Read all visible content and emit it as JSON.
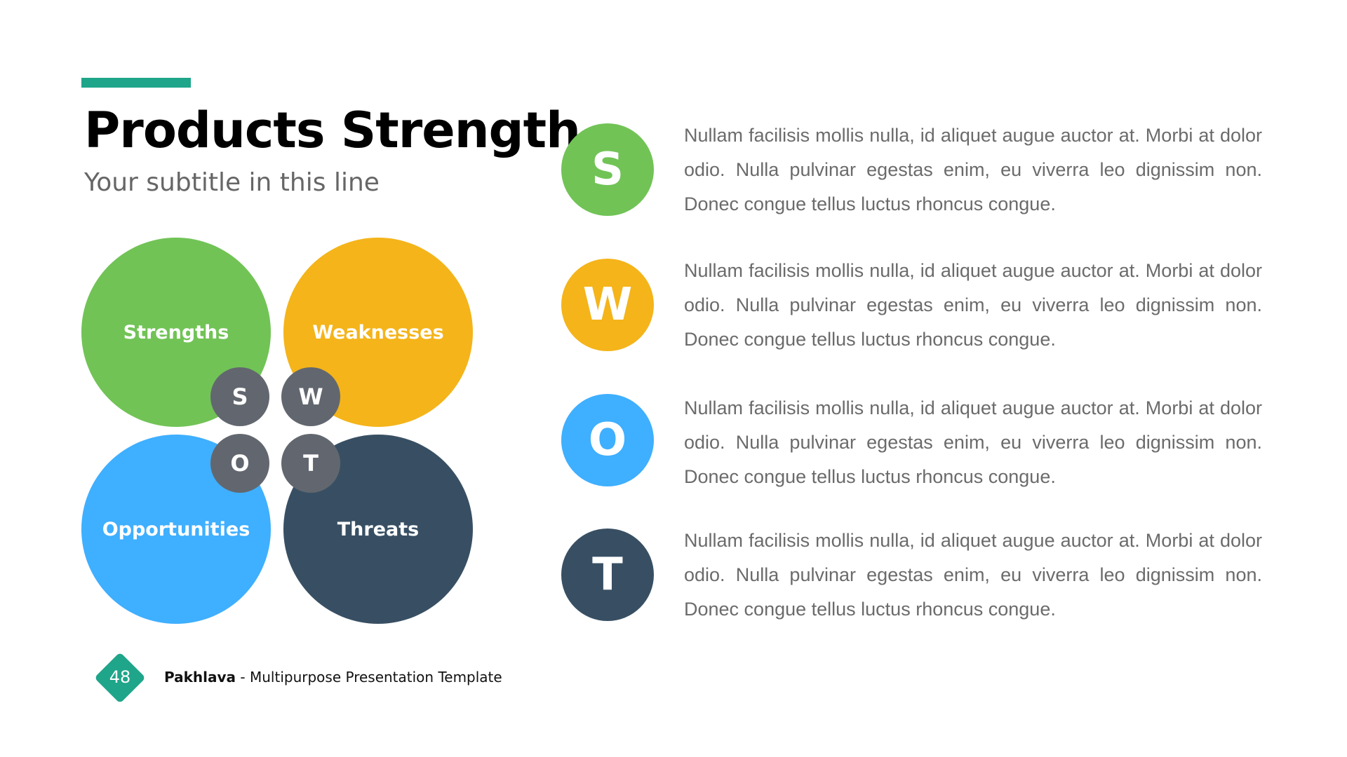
{
  "title": "Products Strength",
  "subtitle": "Your subtitle in this line",
  "colors": {
    "accent": "#1fa58a",
    "strengths": "#71c356",
    "weaknesses": "#f4b41a",
    "opportunities": "#3fafff",
    "threats": "#384f63",
    "letter_badge": "#62676f"
  },
  "swot": [
    {
      "label": "Strengths",
      "letter": "S"
    },
    {
      "label": "Weaknesses",
      "letter": "W"
    },
    {
      "label": "Opportunities",
      "letter": "O"
    },
    {
      "label": "Threats",
      "letter": "T"
    }
  ],
  "items": [
    {
      "letter": "S",
      "text": "Nullam facilisis mollis nulla, id aliquet augue auctor at. Morbi at dolor odio. Nulla pulvinar egestas enim, eu viverra leo dignissim non. Donec congue tellus luctus rhoncus congue."
    },
    {
      "letter": "W",
      "text": "Nullam facilisis mollis nulla, id aliquet augue auctor at. Morbi at dolor odio. Nulla pulvinar egestas enim, eu viverra leo dignissim non. Donec congue tellus luctus rhoncus congue."
    },
    {
      "letter": "O",
      "text": "Nullam facilisis mollis nulla, id aliquet augue auctor at. Morbi at dolor odio. Nulla pulvinar egestas enim, eu viverra leo dignissim non. Donec congue tellus luctus rhoncus congue."
    },
    {
      "letter": "T",
      "text": "Nullam facilisis mollis nulla, id aliquet augue auctor at. Morbi at dolor odio. Nulla pulvinar egestas enim, eu viverra leo dignissim non. Donec congue tellus luctus rhoncus congue."
    }
  ],
  "footer": {
    "page_number": "48",
    "brand": "Pakhlava",
    "separator": " - ",
    "tagline": "Multipurpose Presentation Template"
  }
}
